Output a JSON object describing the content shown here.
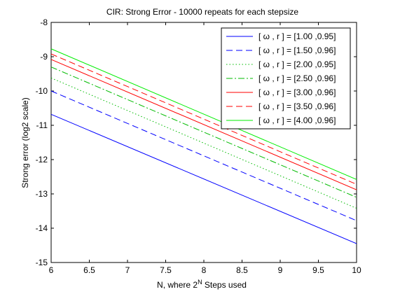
{
  "chart_data": {
    "type": "line",
    "title": "CIR: Strong Error - 10000 repeats for each stepsize",
    "xlabel_prefix": "N, where 2",
    "xlabel_sup": "N",
    "xlabel_suffix": " Steps used",
    "ylabel": "Strong error (log2 scale)",
    "xlim": [
      6,
      10
    ],
    "ylim": [
      -15,
      -8
    ],
    "xticks": [
      6,
      6.5,
      7,
      7.5,
      8,
      8.5,
      9,
      9.5,
      10
    ],
    "xtick_labels": [
      "6",
      "6.5",
      "7",
      "7.5",
      "8",
      "8.5",
      "9",
      "9.5",
      "10"
    ],
    "yticks": [
      -15,
      -14,
      -13,
      -12,
      -11,
      -10,
      -9,
      -8
    ],
    "ytick_labels": [
      "-15",
      "-14",
      "-13",
      "-12",
      "-11",
      "-10",
      "-9",
      "-8"
    ],
    "grid": false,
    "legend_position": "top-right",
    "x": [
      6,
      10
    ],
    "series": [
      {
        "name": "[ ω , r ] = [1.00 ,0.95]",
        "color": "#0000ff",
        "dash": "solid",
        "values": [
          -10.68,
          -14.45
        ]
      },
      {
        "name": "[ ω , r ] = [1.50 ,0.96]",
        "color": "#0000ff",
        "dash": "dashed",
        "values": [
          -10.0,
          -13.78
        ]
      },
      {
        "name": "[ ω , r ] = [2.00 ,0.95]",
        "color": "#00bb00",
        "dash": "dotted",
        "values": [
          -9.62,
          -13.42
        ]
      },
      {
        "name": "[ ω , r ] = [2.50 ,0.96]",
        "color": "#00bb00",
        "dash": "dashdot",
        "values": [
          -9.3,
          -13.1
        ]
      },
      {
        "name": "[ ω , r ] = [3.00 ,0.96]",
        "color": "#ff0000",
        "dash": "solid",
        "values": [
          -9.08,
          -12.88
        ]
      },
      {
        "name": "[ ω , r ] = [3.50 ,0.96]",
        "color": "#ff0000",
        "dash": "dashed",
        "values": [
          -8.92,
          -12.72
        ]
      },
      {
        "name": "[ ω , r ] = [4.00 ,0.96]",
        "color": "#00ee00",
        "dash": "solid",
        "values": [
          -8.77,
          -12.58
        ]
      }
    ]
  }
}
